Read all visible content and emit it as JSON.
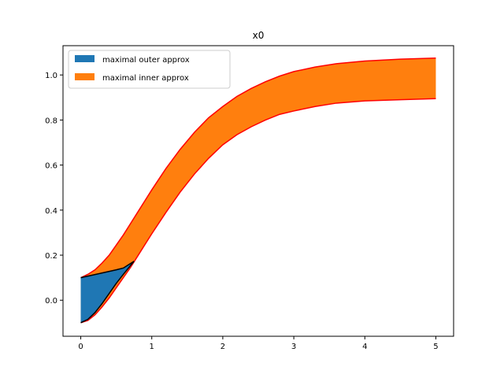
{
  "chart_data": {
    "type": "area",
    "title": "x0",
    "xlabel": "",
    "ylabel": "",
    "xlim": [
      -0.25,
      5.25
    ],
    "ylim": [
      -0.16,
      1.13
    ],
    "xticks": [
      0,
      1,
      2,
      3,
      4,
      5
    ],
    "yticks": [
      0.0,
      0.2,
      0.4,
      0.6,
      0.8,
      1.0
    ],
    "xtick_labels": [
      "0",
      "1",
      "2",
      "3",
      "4",
      "5"
    ],
    "ytick_labels": [
      "0.0",
      "0.2",
      "0.4",
      "0.6",
      "0.8",
      "1.0"
    ],
    "grid": false,
    "legend_position": "top-left",
    "series": [
      {
        "name": "maximal outer approx",
        "color": "#1f77b4",
        "edge_color": "#000000",
        "x": [
          0,
          0.1,
          0.2,
          0.3,
          0.4,
          0.5,
          0.6,
          0.75
        ],
        "upper": [
          0.1,
          0.107,
          0.114,
          0.121,
          0.128,
          0.135,
          0.143,
          0.173
        ],
        "lower": [
          -0.1,
          -0.085,
          -0.055,
          -0.015,
          0.03,
          0.075,
          0.115,
          0.173
        ]
      },
      {
        "name": "maximal inner approx",
        "color": "#ff7f0e",
        "edge_color": "#ff0000",
        "x": [
          0,
          0.1,
          0.2,
          0.3,
          0.4,
          0.5,
          0.6,
          0.7,
          0.8,
          0.9,
          1.0,
          1.2,
          1.4,
          1.6,
          1.8,
          2.0,
          2.2,
          2.4,
          2.6,
          2.8,
          3.0,
          3.3,
          3.6,
          4.0,
          4.5,
          5.0
        ],
        "upper": [
          0.1,
          0.115,
          0.135,
          0.165,
          0.2,
          0.245,
          0.29,
          0.34,
          0.39,
          0.44,
          0.49,
          0.585,
          0.67,
          0.745,
          0.81,
          0.86,
          0.905,
          0.94,
          0.97,
          0.995,
          1.015,
          1.035,
          1.05,
          1.062,
          1.07,
          1.075
        ],
        "lower": [
          -0.1,
          -0.09,
          -0.065,
          -0.03,
          0.01,
          0.055,
          0.1,
          0.145,
          0.195,
          0.245,
          0.295,
          0.39,
          0.48,
          0.56,
          0.63,
          0.69,
          0.735,
          0.77,
          0.8,
          0.825,
          0.84,
          0.86,
          0.875,
          0.885,
          0.89,
          0.895
        ]
      }
    ]
  }
}
